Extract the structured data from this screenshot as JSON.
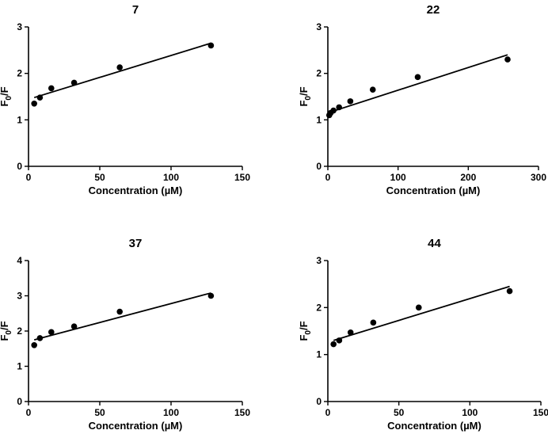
{
  "chart_data": [
    {
      "type": "scatter",
      "title": "7",
      "xlabel": "Concentration (µM)",
      "ylabel_main": "F",
      "ylabel_sub": "0",
      "ylabel_tail": "/F",
      "xlim": [
        0,
        150
      ],
      "ylim": [
        0,
        3
      ],
      "xticks": [
        0,
        50,
        100,
        150
      ],
      "yticks": [
        0,
        1,
        2,
        3
      ],
      "x": [
        4,
        8,
        16,
        32,
        64,
        128
      ],
      "y": [
        1.35,
        1.48,
        1.68,
        1.8,
        2.13,
        2.6
      ],
      "fit": {
        "x": [
          4,
          128
        ],
        "y": [
          1.48,
          2.65
        ]
      }
    },
    {
      "type": "scatter",
      "title": "22",
      "xlabel": "Concentration (µM)",
      "ylabel_main": "F",
      "ylabel_sub": "0",
      "ylabel_tail": "/F",
      "xlim": [
        0,
        300
      ],
      "ylim": [
        0,
        3
      ],
      "xticks": [
        0,
        100,
        200,
        300
      ],
      "yticks": [
        0,
        1,
        2,
        3
      ],
      "x": [
        2,
        4,
        8,
        16,
        32,
        64,
        128,
        256
      ],
      "y": [
        1.1,
        1.15,
        1.2,
        1.27,
        1.4,
        1.65,
        1.92,
        2.3
      ],
      "fit": {
        "x": [
          2,
          256
        ],
        "y": [
          1.16,
          2.4
        ]
      }
    },
    {
      "type": "scatter",
      "title": "37",
      "xlabel": "Concentration (µM)",
      "ylabel_main": "F",
      "ylabel_sub": "0",
      "ylabel_tail": "/F",
      "xlim": [
        0,
        150
      ],
      "ylim": [
        0,
        4
      ],
      "xticks": [
        0,
        50,
        100,
        150
      ],
      "yticks": [
        0,
        1,
        2,
        3,
        4
      ],
      "x": [
        4,
        8,
        16,
        32,
        64,
        128
      ],
      "y": [
        1.6,
        1.8,
        1.97,
        2.13,
        2.55,
        3.0
      ],
      "fit": {
        "x": [
          4,
          128
        ],
        "y": [
          1.75,
          3.08
        ]
      }
    },
    {
      "type": "scatter",
      "title": "44",
      "xlabel": "Concentration (µM)",
      "ylabel_main": "F",
      "ylabel_sub": "0",
      "ylabel_tail": "/F",
      "xlim": [
        0,
        150
      ],
      "ylim": [
        0,
        3
      ],
      "xticks": [
        0,
        50,
        100,
        150
      ],
      "yticks": [
        0,
        1,
        2,
        3
      ],
      "x": [
        4,
        8,
        16,
        32,
        64,
        128
      ],
      "y": [
        1.22,
        1.3,
        1.47,
        1.68,
        2.0,
        2.35
      ],
      "fit": {
        "x": [
          4,
          128
        ],
        "y": [
          1.3,
          2.45
        ]
      }
    }
  ]
}
